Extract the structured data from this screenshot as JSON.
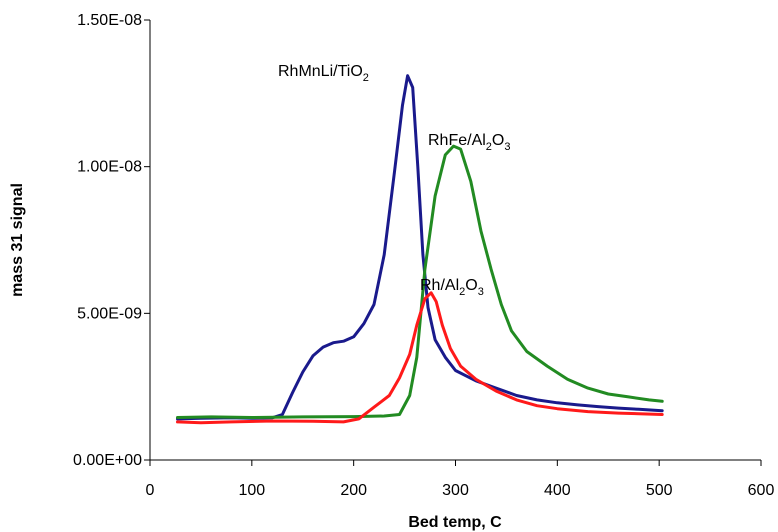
{
  "chart_data": {
    "type": "line",
    "title": "",
    "xlabel": "Bed temp, C",
    "ylabel": "mass 31 signal",
    "xlim": [
      0,
      600
    ],
    "ylim": [
      0,
      1.5e-08
    ],
    "x_ticks": [
      0,
      100,
      200,
      300,
      400,
      500,
      600
    ],
    "x_tick_labels": [
      "0",
      "100",
      "200",
      "300",
      "400",
      "500",
      "600"
    ],
    "y_ticks": [
      0,
      5e-09,
      1e-08,
      1.5e-08
    ],
    "y_tick_labels": [
      "0.00E+00",
      "5.00E-09",
      "1.00E-08",
      "1.50E-08"
    ],
    "grid": false,
    "legend": "none",
    "series": [
      {
        "name": "RhMnLi/TiO2",
        "color": "#1a1a8c",
        "label_main": "RhMnLi/TiO",
        "label_sub": "2",
        "points": [
          [
            27,
            1.4e-09
          ],
          [
            50,
            1.42e-09
          ],
          [
            80,
            1.44e-09
          ],
          [
            100,
            1.42e-09
          ],
          [
            120,
            1.44e-09
          ],
          [
            130,
            1.55e-09
          ],
          [
            140,
            2.3e-09
          ],
          [
            150,
            3e-09
          ],
          [
            160,
            3.55e-09
          ],
          [
            170,
            3.85e-09
          ],
          [
            180,
            4e-09
          ],
          [
            190,
            4.05e-09
          ],
          [
            200,
            4.2e-09
          ],
          [
            210,
            4.65e-09
          ],
          [
            220,
            5.3e-09
          ],
          [
            230,
            7e-09
          ],
          [
            240,
            9.8e-09
          ],
          [
            248,
            1.21e-08
          ],
          [
            253,
            1.31e-08
          ],
          [
            258,
            1.27e-08
          ],
          [
            263,
            1e-08
          ],
          [
            268,
            7e-09
          ],
          [
            273,
            5.2e-09
          ],
          [
            280,
            4.1e-09
          ],
          [
            290,
            3.5e-09
          ],
          [
            300,
            3.05e-09
          ],
          [
            320,
            2.7e-09
          ],
          [
            340,
            2.45e-09
          ],
          [
            360,
            2.2e-09
          ],
          [
            380,
            2.05e-09
          ],
          [
            400,
            1.95e-09
          ],
          [
            420,
            1.88e-09
          ],
          [
            440,
            1.82e-09
          ],
          [
            460,
            1.77e-09
          ],
          [
            480,
            1.73e-09
          ],
          [
            503,
            1.68e-09
          ]
        ]
      },
      {
        "name": "RhFe/Al2O3",
        "color": "#228b22",
        "label_main": "RhFe/Al",
        "label_sub1": "2",
        "label_mid": "O",
        "label_sub2": "3",
        "points": [
          [
            27,
            1.45e-09
          ],
          [
            60,
            1.47e-09
          ],
          [
            100,
            1.45e-09
          ],
          [
            150,
            1.47e-09
          ],
          [
            200,
            1.48e-09
          ],
          [
            230,
            1.5e-09
          ],
          [
            245,
            1.55e-09
          ],
          [
            255,
            2.2e-09
          ],
          [
            262,
            3.5e-09
          ],
          [
            270,
            6.5e-09
          ],
          [
            280,
            9e-09
          ],
          [
            290,
            1.04e-08
          ],
          [
            298,
            1.07e-08
          ],
          [
            305,
            1.06e-08
          ],
          [
            315,
            9.5e-09
          ],
          [
            325,
            7.8e-09
          ],
          [
            335,
            6.5e-09
          ],
          [
            345,
            5.3e-09
          ],
          [
            355,
            4.4e-09
          ],
          [
            370,
            3.7e-09
          ],
          [
            390,
            3.2e-09
          ],
          [
            410,
            2.75e-09
          ],
          [
            430,
            2.45e-09
          ],
          [
            450,
            2.25e-09
          ],
          [
            470,
            2.15e-09
          ],
          [
            490,
            2.05e-09
          ],
          [
            503,
            2e-09
          ]
        ]
      },
      {
        "name": "Rh/Al2O3",
        "color": "#ff1a1a",
        "label_main": "Rh/Al",
        "label_sub1": "2",
        "label_mid": "O",
        "label_sub2": "3",
        "points": [
          [
            27,
            1.3e-09
          ],
          [
            50,
            1.27e-09
          ],
          [
            80,
            1.3e-09
          ],
          [
            120,
            1.33e-09
          ],
          [
            160,
            1.32e-09
          ],
          [
            190,
            1.3e-09
          ],
          [
            205,
            1.4e-09
          ],
          [
            220,
            1.8e-09
          ],
          [
            235,
            2.2e-09
          ],
          [
            245,
            2.8e-09
          ],
          [
            255,
            3.6e-09
          ],
          [
            262,
            4.6e-09
          ],
          [
            270,
            5.5e-09
          ],
          [
            276,
            5.7e-09
          ],
          [
            281,
            5.4e-09
          ],
          [
            287,
            4.6e-09
          ],
          [
            295,
            3.8e-09
          ],
          [
            305,
            3.2e-09
          ],
          [
            320,
            2.75e-09
          ],
          [
            340,
            2.35e-09
          ],
          [
            360,
            2.05e-09
          ],
          [
            380,
            1.85e-09
          ],
          [
            400,
            1.75e-09
          ],
          [
            430,
            1.65e-09
          ],
          [
            460,
            1.6e-09
          ],
          [
            503,
            1.55e-09
          ]
        ]
      }
    ]
  }
}
